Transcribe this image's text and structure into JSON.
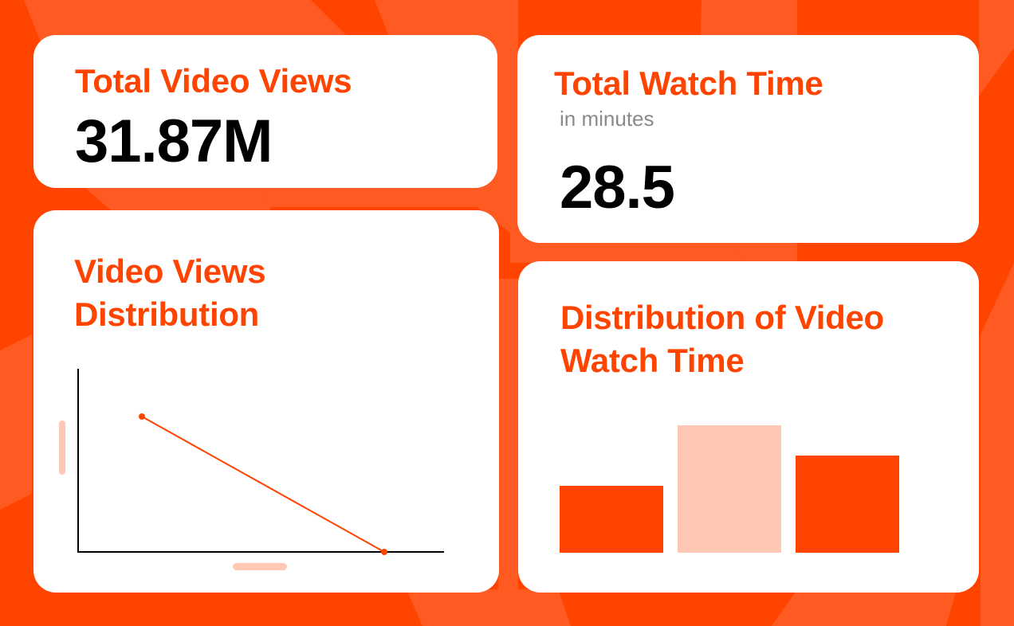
{
  "colors": {
    "accent": "#FF4400",
    "accent_light": "#FFC8B4",
    "background": "#FF4400",
    "background_shape": "#FF5A22",
    "card": "#FFFFFF",
    "text_primary": "#000000",
    "text_muted": "#8A8A8A"
  },
  "cards": {
    "total_views": {
      "title": "Total Video Views",
      "value": "31.87M"
    },
    "total_watch_time": {
      "title": "Total Watch Time",
      "subtitle": "in minutes",
      "value": "28.5"
    },
    "views_distribution": {
      "title_line1": "Video Views",
      "title_line2": "Distribution"
    },
    "watch_time_distribution": {
      "title_line1": "Distribution of Video",
      "title_line2": "Watch Time"
    }
  },
  "chart_data": [
    {
      "type": "line",
      "title": "Video Views Distribution",
      "xlabel": "",
      "ylabel": "",
      "x": [
        1,
        2
      ],
      "values": [
        0.74,
        0.0
      ],
      "ylim": [
        0,
        1
      ],
      "grid": false,
      "legend": "none",
      "notes": "Two-point descending line; axis labels are rendered as placeholder pills without text"
    },
    {
      "type": "bar",
      "title": "Distribution of Video Watch Time",
      "categories": [
        "",
        "",
        ""
      ],
      "values": [
        84,
        160,
        122
      ],
      "colors": [
        "#FF4400",
        "#FFC8B4",
        "#FF4400"
      ],
      "grid": false,
      "legend": "none",
      "notes": "Relative bar heights in pixels; no axis or tick labels shown"
    }
  ]
}
